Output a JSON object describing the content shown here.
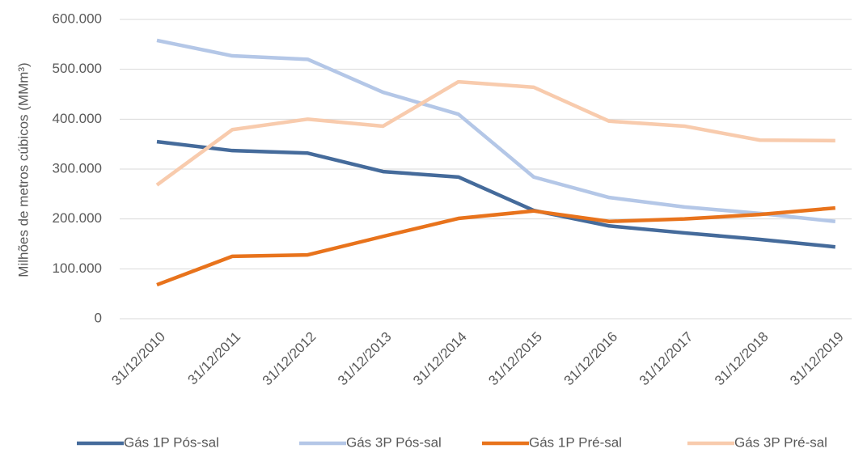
{
  "chart_data": {
    "type": "line",
    "y_label": "Milhões de metros cúbicos (MMm³)",
    "categories": [
      "31/12/2010",
      "31/12/2011",
      "31/12/2012",
      "31/12/2013",
      "31/12/2014",
      "31/12/2015",
      "31/12/2016",
      "31/12/2017",
      "31/12/2018",
      "31/12/2019"
    ],
    "series": [
      {
        "name": "Gás 1P Pós-sal",
        "color": "#456b9b",
        "values": [
          355000,
          337000,
          332000,
          295000,
          284000,
          217000,
          186000,
          172000,
          159000,
          144000
        ]
      },
      {
        "name": "Gás 3P Pós-sal",
        "color": "#b4c7e7",
        "values": [
          558000,
          527000,
          520000,
          454000,
          410000,
          284000,
          243000,
          224000,
          211000,
          195000
        ]
      },
      {
        "name": "Gás 1P Pré-sal",
        "color": "#e8731c",
        "values": [
          68000,
          125000,
          128000,
          165000,
          201000,
          216000,
          195000,
          200000,
          209000,
          222000
        ]
      },
      {
        "name": "Gás 3P Pré-sal",
        "color": "#f8cbad",
        "values": [
          268000,
          379000,
          400000,
          386000,
          475000,
          464000,
          396000,
          386000,
          358000,
          357000
        ]
      }
    ],
    "ylim": [
      0,
      600000
    ],
    "yticks": [
      0,
      {
        "value": 100000,
        "label": "100.000"
      },
      {
        "value": 200000,
        "label": "200.000"
      },
      {
        "value": 300000,
        "label": "300.000"
      },
      {
        "value": 400000,
        "label": "400.000"
      },
      {
        "value": 500000,
        "label": "500.000"
      },
      {
        "value": 600000,
        "label": "600.000"
      }
    ],
    "grid": true,
    "legend": "bottom"
  }
}
